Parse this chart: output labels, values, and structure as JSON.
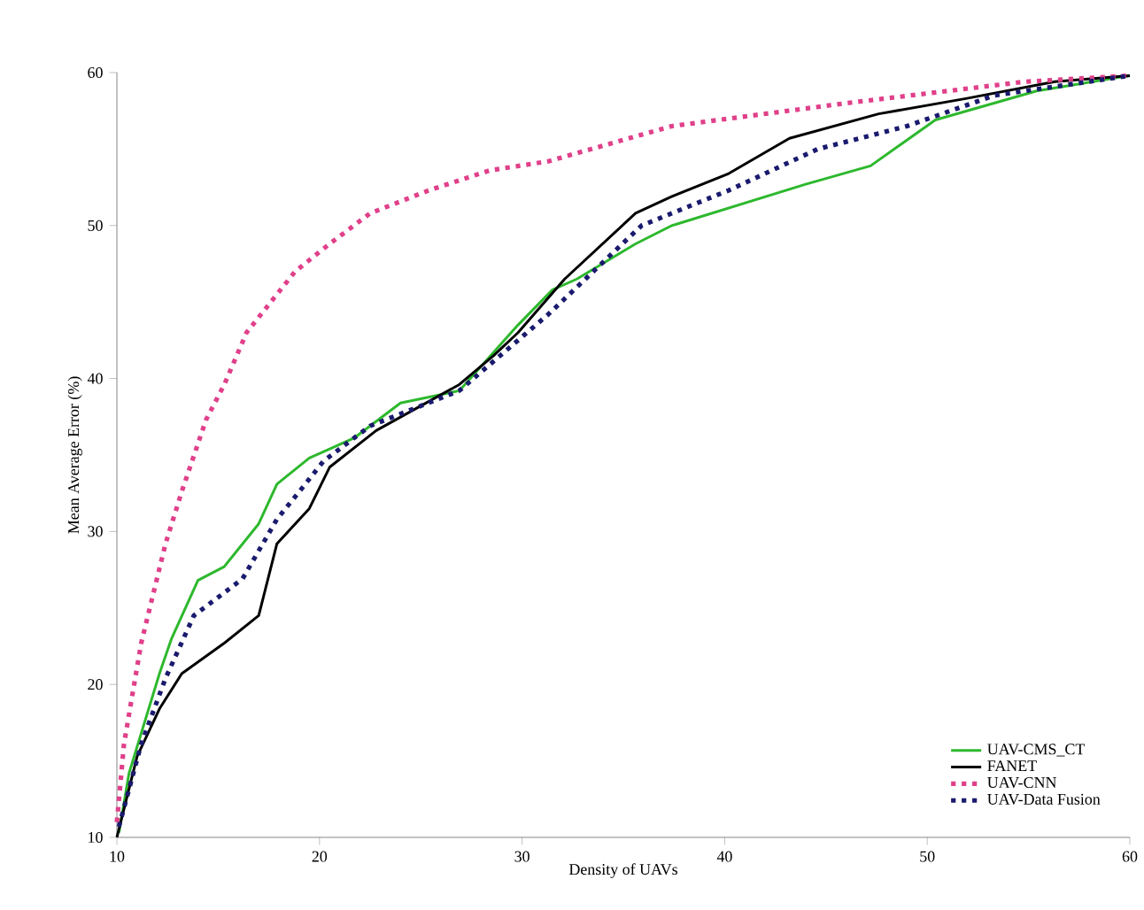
{
  "chart_data": {
    "type": "line",
    "xlabel": "Density of UAVs",
    "ylabel": "Mean Average Error (%)",
    "xlim": [
      10,
      60
    ],
    "ylim": [
      10,
      60
    ],
    "xticks": [
      10,
      20,
      30,
      40,
      50,
      60
    ],
    "yticks": [
      10,
      20,
      30,
      40,
      50,
      60
    ],
    "grid": false,
    "legend": "bottom right",
    "marker": "none",
    "series": [
      {
        "name": "UAV-CMS_CT",
        "color": "#2db82d",
        "line_style": "solid",
        "x": [
          10.1,
          10.6,
          12.1,
          12.7,
          14,
          15.3,
          17,
          17.9,
          19.5,
          21.7,
          24,
          26.9,
          29.8,
          31.5,
          32.7,
          35.6,
          37.4,
          44,
          47.2,
          50.4,
          55.4,
          60
        ],
        "values": [
          10.3,
          14.2,
          20.7,
          23,
          26.8,
          27.7,
          30.5,
          33.1,
          34.8,
          36.1,
          38.4,
          39.2,
          43.5,
          45.8,
          46.5,
          48.8,
          50,
          52.7,
          53.9,
          56.9,
          58.8,
          59.8
        ]
      },
      {
        "name": "FANET",
        "color": "#000000",
        "line_style": "solid",
        "x": [
          10,
          11,
          12.1,
          13.2,
          15.3,
          17,
          17.9,
          19.5,
          20.5,
          22.8,
          26.9,
          28.6,
          29.8,
          32.1,
          35.6,
          37.4,
          40.2,
          43.2,
          47.6,
          51.9,
          56.3,
          60
        ],
        "values": [
          10,
          15.3,
          18.4,
          20.7,
          22.7,
          24.5,
          29.2,
          31.5,
          34.2,
          36.6,
          39.6,
          41.5,
          43,
          46.5,
          50.8,
          51.9,
          53.4,
          55.7,
          57.3,
          58.3,
          59.4,
          59.8
        ]
      },
      {
        "name": "UAV-CNN",
        "color": "#e0408a",
        "line_style": "dotted",
        "x": [
          10,
          10.35,
          11.2,
          12.4,
          13.2,
          14.4,
          15.3,
          16.4,
          17.6,
          18.8,
          20.5,
          22.5,
          25.4,
          28.4,
          31.3,
          35,
          37.4,
          46,
          54.8,
          60
        ],
        "values": [
          11,
          16.1,
          22.7,
          29.2,
          32.6,
          37.3,
          39.6,
          43,
          45,
          47,
          48.8,
          50.8,
          52.3,
          53.6,
          54.2,
          55.6,
          56.5,
          58,
          59.4,
          59.8
        ]
      },
      {
        "name": "UAV-Data Fusion",
        "color": "#1a1a6e",
        "line_style": "dotted",
        "x": [
          10.1,
          11.2,
          12.4,
          13.8,
          16.2,
          17.9,
          19,
          20.2,
          22.5,
          26.9,
          31.3,
          35.9,
          40.2,
          44.6,
          49,
          53.3,
          60
        ],
        "values": [
          10.7,
          16.1,
          20.4,
          24.5,
          26.9,
          30.8,
          32.6,
          34.6,
          36.9,
          39.2,
          44.2,
          50,
          52.3,
          55,
          56.5,
          58.5,
          59.8
        ]
      }
    ]
  }
}
